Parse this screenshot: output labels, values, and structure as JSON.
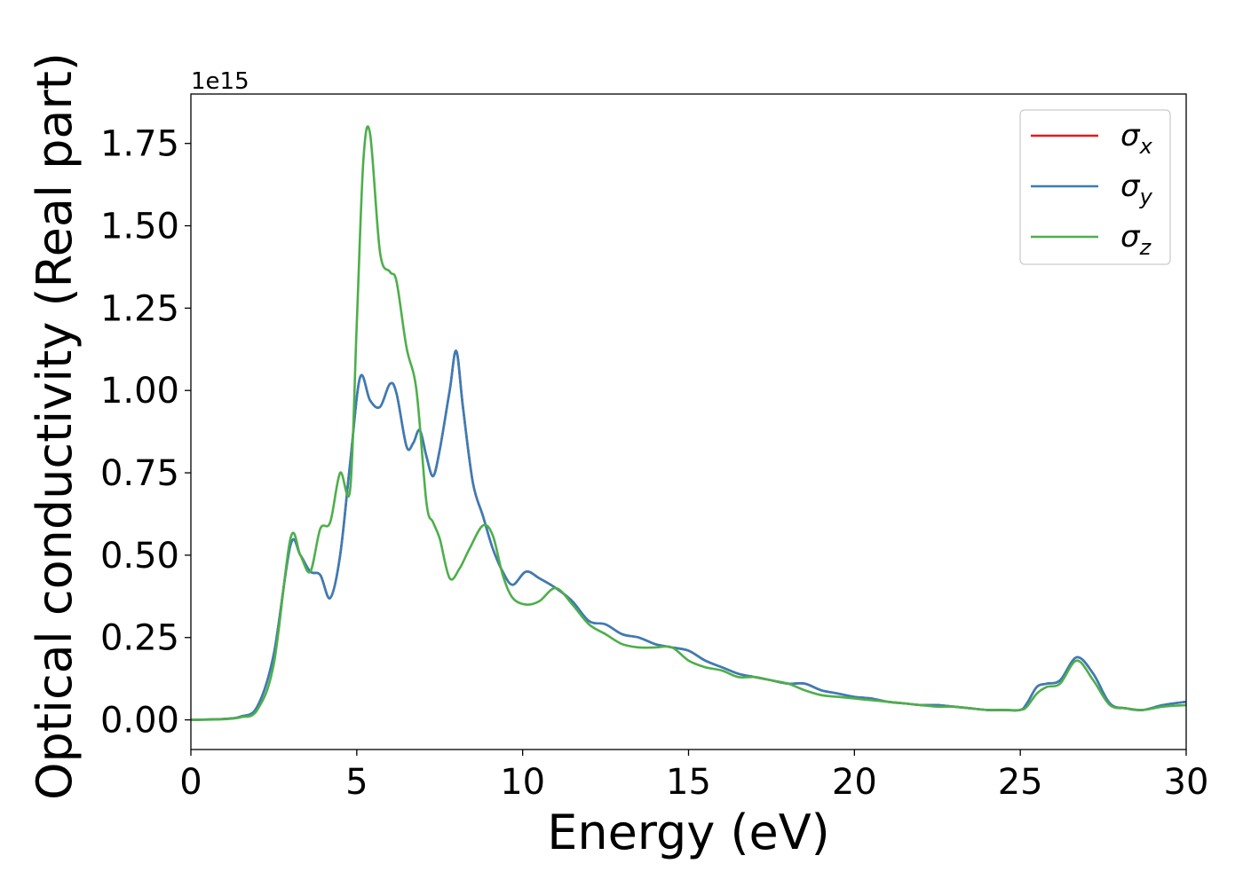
{
  "chart_data": {
    "type": "line",
    "xlabel": "Energy (eV)",
    "ylabel": "Optical conductivity (Real part)",
    "y_offset_label": "1e15",
    "y_multiplier": 1000000000000000.0,
    "xlim": [
      0,
      30
    ],
    "ylim": [
      -0.09,
      1.9
    ],
    "x_ticks": [
      0,
      5,
      10,
      15,
      20,
      25,
      30
    ],
    "x_tick_labels": [
      "0",
      "5",
      "10",
      "15",
      "20",
      "25",
      "30"
    ],
    "y_ticks": [
      0.0,
      0.25,
      0.5,
      0.75,
      1.0,
      1.25,
      1.5,
      1.75
    ],
    "y_tick_labels": [
      "0.00",
      "0.25",
      "0.50",
      "0.75",
      "1.00",
      "1.25",
      "1.50",
      "1.75"
    ],
    "grid": false,
    "legend": {
      "position": "top-right"
    },
    "series": [
      {
        "name": "σx",
        "name_base": "σ",
        "name_sub": "x",
        "color": "#e41a1c",
        "x": [
          0,
          1,
          1.5,
          2,
          2.5,
          3,
          3.3,
          3.6,
          3.9,
          4.2,
          4.5,
          4.8,
          5.1,
          5.4,
          5.7,
          6.0,
          6.2,
          6.5,
          6.7,
          6.9,
          7.1,
          7.3,
          7.5,
          7.8,
          8.0,
          8.2,
          8.5,
          8.8,
          9.1,
          9.4,
          9.7,
          10.1,
          10.5,
          11,
          11.5,
          12,
          12.5,
          13,
          13.5,
          14,
          14.5,
          15,
          15.5,
          16,
          16.5,
          17,
          17.5,
          18,
          18.5,
          19,
          19.5,
          20,
          20.5,
          21,
          21.5,
          22,
          22.5,
          23,
          23.5,
          24,
          24.5,
          25,
          25.2,
          25.5,
          25.8,
          26.2,
          26.7,
          27.2,
          27.7,
          28.2,
          28.7,
          29.3,
          30
        ],
        "y": [
          0,
          0.003,
          0.01,
          0.04,
          0.2,
          0.53,
          0.5,
          0.45,
          0.44,
          0.37,
          0.5,
          0.78,
          1.04,
          0.97,
          0.95,
          1.02,
          0.99,
          0.83,
          0.84,
          0.88,
          0.8,
          0.74,
          0.82,
          1.0,
          1.12,
          0.95,
          0.72,
          0.62,
          0.52,
          0.45,
          0.41,
          0.45,
          0.43,
          0.4,
          0.36,
          0.3,
          0.29,
          0.26,
          0.25,
          0.23,
          0.22,
          0.21,
          0.18,
          0.16,
          0.14,
          0.13,
          0.12,
          0.11,
          0.11,
          0.09,
          0.08,
          0.07,
          0.065,
          0.055,
          0.05,
          0.045,
          0.045,
          0.04,
          0.035,
          0.03,
          0.03,
          0.03,
          0.05,
          0.1,
          0.11,
          0.12,
          0.19,
          0.14,
          0.05,
          0.035,
          0.03,
          0.045,
          0.055
        ]
      },
      {
        "name": "σy",
        "name_base": "σ",
        "name_sub": "y",
        "color": "#377eb8",
        "x": [
          0,
          1,
          1.5,
          2,
          2.5,
          3,
          3.3,
          3.6,
          3.9,
          4.2,
          4.5,
          4.8,
          5.1,
          5.4,
          5.7,
          6.0,
          6.2,
          6.5,
          6.7,
          6.9,
          7.1,
          7.3,
          7.5,
          7.8,
          8.0,
          8.2,
          8.5,
          8.8,
          9.1,
          9.4,
          9.7,
          10.1,
          10.5,
          11,
          11.5,
          12,
          12.5,
          13,
          13.5,
          14,
          14.5,
          15,
          15.5,
          16,
          16.5,
          17,
          17.5,
          18,
          18.5,
          19,
          19.5,
          20,
          20.5,
          21,
          21.5,
          22,
          22.5,
          23,
          23.5,
          24,
          24.5,
          25,
          25.2,
          25.5,
          25.8,
          26.2,
          26.7,
          27.2,
          27.7,
          28.2,
          28.7,
          29.3,
          30
        ],
        "y": [
          0,
          0.003,
          0.01,
          0.04,
          0.2,
          0.53,
          0.5,
          0.45,
          0.44,
          0.37,
          0.5,
          0.78,
          1.04,
          0.97,
          0.95,
          1.02,
          0.99,
          0.83,
          0.84,
          0.88,
          0.8,
          0.74,
          0.82,
          1.0,
          1.12,
          0.95,
          0.72,
          0.62,
          0.52,
          0.45,
          0.41,
          0.45,
          0.43,
          0.4,
          0.36,
          0.3,
          0.29,
          0.26,
          0.25,
          0.23,
          0.22,
          0.21,
          0.18,
          0.16,
          0.14,
          0.13,
          0.12,
          0.11,
          0.11,
          0.09,
          0.08,
          0.07,
          0.065,
          0.055,
          0.05,
          0.045,
          0.045,
          0.04,
          0.035,
          0.03,
          0.03,
          0.03,
          0.05,
          0.1,
          0.11,
          0.12,
          0.19,
          0.14,
          0.05,
          0.035,
          0.03,
          0.045,
          0.055
        ]
      },
      {
        "name": "σz",
        "name_base": "σ",
        "name_sub": "z",
        "color": "#4daf4a",
        "x": [
          0,
          1,
          1.5,
          2,
          2.5,
          3,
          3.3,
          3.6,
          3.9,
          4.2,
          4.5,
          4.8,
          5.0,
          5.2,
          5.4,
          5.7,
          6.0,
          6.2,
          6.5,
          6.8,
          7.1,
          7.3,
          7.5,
          7.8,
          8.1,
          8.4,
          8.8,
          9.1,
          9.4,
          9.7,
          10.1,
          10.5,
          11,
          11.5,
          12,
          12.5,
          13,
          13.5,
          14,
          14.5,
          15,
          15.5,
          16,
          16.5,
          17,
          17.5,
          18,
          18.5,
          19,
          19.5,
          20,
          20.5,
          21,
          21.5,
          22,
          22.5,
          23,
          23.5,
          24,
          24.5,
          25,
          25.2,
          25.5,
          25.8,
          26.2,
          26.7,
          27.2,
          27.7,
          28.2,
          28.7,
          29.3,
          30
        ],
        "y": [
          0,
          0.002,
          0.008,
          0.03,
          0.17,
          0.55,
          0.5,
          0.45,
          0.58,
          0.6,
          0.75,
          0.7,
          1.2,
          1.7,
          1.78,
          1.42,
          1.36,
          1.33,
          1.13,
          1.0,
          0.66,
          0.6,
          0.55,
          0.43,
          0.46,
          0.52,
          0.59,
          0.56,
          0.44,
          0.37,
          0.35,
          0.36,
          0.4,
          0.35,
          0.29,
          0.26,
          0.23,
          0.22,
          0.22,
          0.22,
          0.18,
          0.16,
          0.15,
          0.13,
          0.13,
          0.12,
          0.11,
          0.09,
          0.075,
          0.07,
          0.065,
          0.06,
          0.055,
          0.05,
          0.045,
          0.04,
          0.04,
          0.035,
          0.03,
          0.03,
          0.03,
          0.04,
          0.08,
          0.1,
          0.11,
          0.18,
          0.12,
          0.045,
          0.035,
          0.03,
          0.04,
          0.045
        ]
      }
    ]
  }
}
